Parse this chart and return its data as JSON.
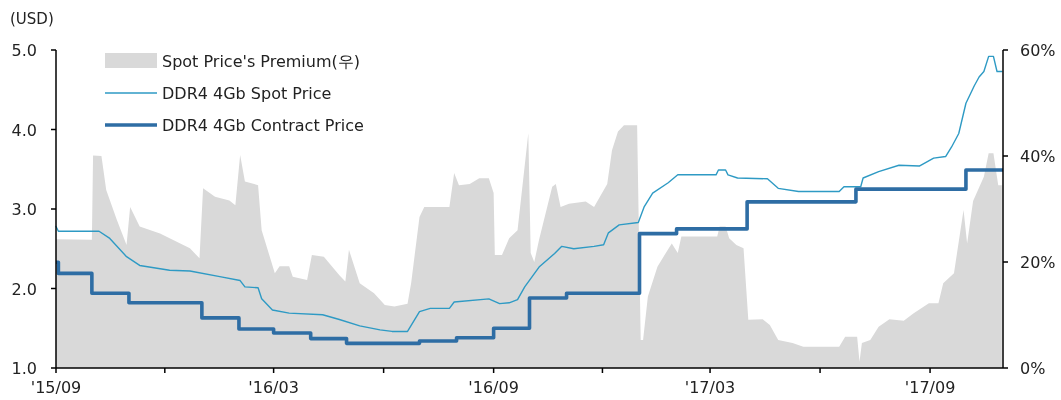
{
  "chart_data": {
    "type": "line",
    "ylabel": "(USD)",
    "legend": "top left",
    "xlim": [
      "2015-09-01",
      "2017-11-01"
    ],
    "xticks": [
      {
        "value": "2015-09-01",
        "label": "'15/09"
      },
      {
        "value": "2015-12-01",
        "label": null
      },
      {
        "value": "2016-03-01",
        "label": "'16/03"
      },
      {
        "value": "2016-06-01",
        "label": null
      },
      {
        "value": "2016-09-01",
        "label": "'16/09"
      },
      {
        "value": "2016-12-01",
        "label": null
      },
      {
        "value": "2017-03-01",
        "label": "'17/03"
      },
      {
        "value": "2017-06-01",
        "label": null
      },
      {
        "value": "2017-09-01",
        "label": "'17/09"
      }
    ],
    "ylim": [
      1,
      5
    ],
    "yticks": [
      {
        "value": 1,
        "label": "1.0"
      },
      {
        "value": 2,
        "label": "2.0"
      },
      {
        "value": 3,
        "label": "3.0"
      },
      {
        "value": 4,
        "label": "4.0"
      },
      {
        "value": 5,
        "label": "5.0"
      }
    ],
    "y2lim": [
      0,
      60
    ],
    "y2ticks": [
      {
        "value": 0,
        "label": "0%"
      },
      {
        "value": 20,
        "label": "20%"
      },
      {
        "value": 40,
        "label": "40%"
      },
      {
        "value": 60,
        "label": "60%"
      }
    ],
    "series": [
      {
        "name": "Spot Price's Premium(우)",
        "type": "area",
        "axis": "y2",
        "color": "#d9d9d9",
        "x": [
          "2015-09-01",
          "2015-10-01",
          "2015-10-02",
          "2015-10-09",
          "2015-10-13",
          "2015-10-22",
          "2015-10-30",
          "2015-11-02",
          "2015-11-10",
          "2015-11-27",
          "2015-12-22",
          "2015-12-30",
          "2016-01-02",
          "2016-01-12",
          "2016-01-24",
          "2016-01-29",
          "2016-02-02",
          "2016-02-06",
          "2016-02-17",
          "2016-02-20",
          "2016-03-02",
          "2016-03-06",
          "2016-03-14",
          "2016-03-17",
          "2016-03-29",
          "2016-04-02",
          "2016-04-12",
          "2016-04-25",
          "2016-04-30",
          "2016-05-03",
          "2016-05-12",
          "2016-05-24",
          "2016-06-02",
          "2016-06-10",
          "2016-06-21",
          "2016-06-24",
          "2016-07-01",
          "2016-07-05",
          "2016-07-26",
          "2016-07-30",
          "2016-08-03",
          "2016-08-12",
          "2016-08-20",
          "2016-08-28",
          "2016-09-01",
          "2016-09-02",
          "2016-09-08",
          "2016-09-14",
          "2016-09-21",
          "2016-09-30",
          "2016-10-02",
          "2016-10-05",
          "2016-10-09",
          "2016-10-20",
          "2016-10-23",
          "2016-10-27",
          "2016-11-03",
          "2016-11-17",
          "2016-11-24",
          "2016-12-05",
          "2016-12-09",
          "2016-12-14",
          "2016-12-19",
          "2016-12-30",
          "2017-01-02",
          "2017-01-04",
          "2017-01-08",
          "2017-01-16",
          "2017-01-23",
          "2017-01-28",
          "2017-02-02",
          "2017-02-05",
          "2017-03-07",
          "2017-03-09",
          "2017-03-14",
          "2017-03-17",
          "2017-03-23",
          "2017-03-29",
          "2017-04-02",
          "2017-04-14",
          "2017-04-20",
          "2017-04-27",
          "2017-05-09",
          "2017-05-18",
          "2017-06-17",
          "2017-06-22",
          "2017-07-02",
          "2017-07-04",
          "2017-07-06",
          "2017-07-13",
          "2017-07-20",
          "2017-07-29",
          "2017-08-10",
          "2017-08-18",
          "2017-08-31",
          "2017-09-08",
          "2017-09-12",
          "2017-09-21",
          "2017-09-29",
          "2017-10-02",
          "2017-10-07",
          "2017-10-16",
          "2017-10-20",
          "2017-10-24",
          "2017-10-28",
          "2017-10-31"
        ],
        "values": [
          24.3,
          24.2,
          40.1,
          40,
          33.6,
          27.9,
          23.2,
          30.4,
          26.7,
          25.4,
          22.6,
          20.7,
          33.9,
          32.3,
          31.6,
          30.7,
          40.2,
          35.2,
          34.5,
          26,
          17.9,
          19.2,
          19.2,
          17.2,
          16.6,
          21.3,
          21,
          17.5,
          16.3,
          22.3,
          16,
          14.1,
          11.9,
          11.6,
          12.1,
          16,
          28.5,
          30.4,
          30.4,
          36.8,
          34.5,
          34.7,
          35.8,
          35.8,
          33,
          21.3,
          21.3,
          24.5,
          26,
          44.3,
          21.7,
          20,
          24.2,
          34.2,
          34.7,
          30.4,
          31,
          31.4,
          30.4,
          34.7,
          41.1,
          44.6,
          45.8,
          45.8,
          5.3,
          5.3,
          13.5,
          19.1,
          21.7,
          23.5,
          21.7,
          24.8,
          24.8,
          26.7,
          26.7,
          24.5,
          23.2,
          22.6,
          9.1,
          9.2,
          8.1,
          5.3,
          4.7,
          4,
          4,
          5.9,
          5.9,
          1.2,
          4.7,
          5.3,
          7.8,
          9.2,
          8.9,
          10.3,
          12.2,
          12.2,
          16,
          17.9,
          29.8,
          23.5,
          31.5,
          36.1,
          40.5,
          40.5,
          34.5,
          34.5
        ]
      },
      {
        "name": "DDR4 4Gb Spot Price",
        "color": "#2e9ac4",
        "x": [
          "2015-09-01",
          "2015-09-03",
          "2015-10-07",
          "2015-10-16",
          "2015-10-30",
          "2015-11-10",
          "2015-12-05",
          "2015-12-22",
          "2016-01-16",
          "2016-02-02",
          "2016-02-06",
          "2016-02-17",
          "2016-02-20",
          "2016-02-29",
          "2016-03-14",
          "2016-04-11",
          "2016-04-25",
          "2016-05-12",
          "2016-05-29",
          "2016-06-08",
          "2016-06-21",
          "2016-07-01",
          "2016-07-10",
          "2016-07-26",
          "2016-07-30",
          "2016-08-28",
          "2016-09-06",
          "2016-09-14",
          "2016-09-21",
          "2016-09-27",
          "2016-10-09",
          "2016-10-22",
          "2016-10-28",
          "2016-11-07",
          "2016-11-24",
          "2016-12-02",
          "2016-12-06",
          "2016-12-15",
          "2016-12-31",
          "2017-01-05",
          "2017-01-12",
          "2017-01-25",
          "2017-02-02",
          "2017-03-06",
          "2017-03-08",
          "2017-03-14",
          "2017-03-16",
          "2017-03-24",
          "2017-04-18",
          "2017-04-27",
          "2017-05-14",
          "2017-06-17",
          "2017-06-21",
          "2017-07-05",
          "2017-07-07",
          "2017-07-20",
          "2017-08-06",
          "2017-08-23",
          "2017-09-04",
          "2017-09-14",
          "2017-09-19",
          "2017-09-25",
          "2017-10-01",
          "2017-10-08",
          "2017-10-12",
          "2017-10-16",
          "2017-10-20",
          "2017-10-24",
          "2017-10-27",
          "2017-10-31"
        ],
        "values": [
          2.78,
          2.72,
          2.72,
          2.63,
          2.4,
          2.29,
          2.23,
          2.22,
          2.15,
          2.1,
          2.02,
          2.01,
          1.87,
          1.73,
          1.69,
          1.67,
          1.61,
          1.53,
          1.48,
          1.46,
          1.46,
          1.71,
          1.75,
          1.75,
          1.83,
          1.87,
          1.81,
          1.82,
          1.86,
          2.02,
          2.27,
          2.44,
          2.53,
          2.5,
          2.53,
          2.55,
          2.7,
          2.8,
          2.83,
          3.03,
          3.2,
          3.33,
          3.43,
          3.43,
          3.49,
          3.49,
          3.43,
          3.39,
          3.38,
          3.26,
          3.22,
          3.22,
          3.28,
          3.28,
          3.39,
          3.47,
          3.55,
          3.54,
          3.64,
          3.66,
          3.78,
          3.95,
          4.33,
          4.55,
          4.66,
          4.73,
          4.92,
          4.92,
          4.73,
          4.73
        ]
      },
      {
        "name": "DDR4 4Gb Contract Price",
        "type": "step",
        "color": "#2e6da4",
        "x": [
          "2015-09-01",
          "2015-09-03",
          "2015-10-01",
          "2015-11-01",
          "2016-01-01",
          "2016-02-01",
          "2016-03-01",
          "2016-04-01",
          "2016-05-01",
          "2016-07-01",
          "2016-08-01",
          "2016-09-01",
          "2016-10-01",
          "2016-11-01",
          "2017-01-01",
          "2017-02-01",
          "2017-04-01",
          "2017-07-01",
          "2017-10-01",
          "2017-11-01"
        ],
        "values": [
          2.33,
          2.19,
          1.94,
          1.82,
          1.63,
          1.49,
          1.44,
          1.37,
          1.31,
          1.34,
          1.38,
          1.5,
          1.88,
          1.94,
          2.69,
          2.75,
          3.09,
          3.25,
          3.49,
          3.49
        ]
      }
    ]
  }
}
